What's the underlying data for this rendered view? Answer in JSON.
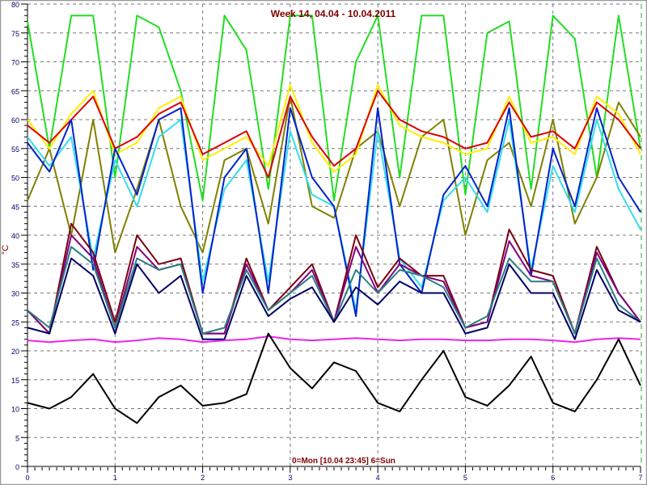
{
  "chart_data": {
    "type": "line",
    "title": "Week 14, 04.04 - 10.04.2011",
    "xlabel": "0=Mon [10.04 23:45] 6=Sun",
    "ylabel": "°C",
    "xlim": [
      0,
      7
    ],
    "ylim": [
      0,
      80
    ],
    "x_ticks": [
      "0",
      "1",
      "2",
      "3",
      "4",
      "5",
      "6",
      "7"
    ],
    "y_ticks": [
      "0",
      "5",
      "10",
      "15",
      "20",
      "25",
      "30",
      "35",
      "40",
      "45",
      "50",
      "55",
      "60",
      "65",
      "70",
      "75",
      "80"
    ],
    "grid": true,
    "x_step": 0.25,
    "series": [
      {
        "name": "green",
        "color": "#22dd22",
        "values": [
          77,
          55,
          78,
          78,
          50,
          78,
          76,
          65,
          46,
          78,
          72,
          48,
          78,
          78,
          46,
          70,
          78,
          50,
          78,
          78,
          47,
          75,
          77,
          48,
          78,
          74,
          50,
          78,
          55
        ]
      },
      {
        "name": "olive",
        "color": "#808000",
        "values": [
          46,
          55,
          40,
          60,
          37,
          48,
          60,
          45,
          37,
          53,
          55,
          42,
          64,
          45,
          43,
          55,
          58,
          45,
          57,
          60,
          40,
          53,
          56,
          45,
          60,
          42,
          50,
          63,
          57
        ]
      },
      {
        "name": "yellow",
        "color": "#ffee00",
        "values": [
          60,
          55,
          61,
          65,
          54,
          56,
          62,
          64,
          53,
          55,
          57,
          52,
          66,
          56,
          51,
          54,
          66,
          59,
          57,
          56,
          54,
          55,
          64,
          56,
          57,
          54,
          64,
          61,
          54
        ]
      },
      {
        "name": "red",
        "color": "#dd0000",
        "values": [
          59,
          56,
          60,
          64,
          55,
          57,
          61,
          63,
          54,
          56,
          58,
          50,
          64,
          57,
          52,
          55,
          65,
          60,
          58,
          57,
          55,
          56,
          63,
          57,
          58,
          55,
          63,
          60,
          55
        ]
      },
      {
        "name": "cyan",
        "color": "#33ddee",
        "values": [
          57,
          52,
          57,
          36,
          53,
          45,
          57,
          60,
          32,
          48,
          53,
          32,
          58,
          47,
          45,
          27,
          58,
          36,
          31,
          46,
          50,
          44,
          60,
          34,
          52,
          44,
          60,
          48,
          41
        ]
      },
      {
        "name": "blue",
        "color": "#0022cc",
        "values": [
          56,
          51,
          60,
          34,
          55,
          47,
          60,
          62,
          30,
          50,
          55,
          30,
          62,
          50,
          45,
          26,
          62,
          35,
          30,
          47,
          52,
          45,
          62,
          33,
          55,
          45,
          62,
          50,
          44
        ]
      },
      {
        "name": "maroon",
        "color": "#7a0010",
        "values": [
          27,
          23,
          42,
          37,
          25,
          40,
          35,
          36,
          23,
          23,
          36,
          27,
          31,
          35,
          25,
          40,
          31,
          36,
          33,
          33,
          24,
          25,
          41,
          34,
          33,
          23,
          38,
          30,
          25
        ]
      },
      {
        "name": "purple",
        "color": "#800080",
        "values": [
          27,
          23,
          40,
          36,
          24,
          38,
          34,
          35,
          23,
          23,
          35,
          27,
          30,
          34,
          25,
          38,
          30,
          35,
          33,
          32,
          24,
          25,
          39,
          33,
          32,
          23,
          37,
          30,
          25
        ]
      },
      {
        "name": "teal",
        "color": "#2a8080",
        "values": [
          27,
          24,
          38,
          35,
          24,
          36,
          34,
          35,
          23,
          24,
          34,
          27,
          30,
          33,
          25,
          34,
          30,
          34,
          33,
          31,
          24,
          26,
          36,
          32,
          32,
          23,
          36,
          28,
          25
        ]
      },
      {
        "name": "navy",
        "color": "#000066",
        "values": [
          24,
          23,
          36,
          33,
          23,
          35,
          30,
          33,
          22,
          22,
          33,
          26,
          29,
          31,
          25,
          31,
          28,
          32,
          30,
          30,
          23,
          24,
          35,
          30,
          30,
          22,
          34,
          27,
          25
        ]
      },
      {
        "name": "magenta",
        "color": "#ee22ee",
        "values": [
          21.8,
          21.5,
          21.8,
          22.0,
          21.5,
          21.8,
          22.2,
          22.0,
          21.5,
          21.8,
          22.0,
          22.5,
          22.0,
          21.8,
          22.0,
          22.2,
          22.0,
          21.8,
          22.0,
          22.0,
          21.8,
          21.8,
          22.0,
          22.0,
          21.8,
          21.5,
          22.0,
          22.2,
          22.0
        ]
      },
      {
        "name": "black",
        "color": "#000000",
        "values": [
          11,
          10,
          12,
          16,
          10,
          7.5,
          12,
          14,
          10.5,
          11,
          12.5,
          23,
          17,
          13.5,
          18,
          16.5,
          11,
          9.5,
          15,
          20,
          12,
          10.5,
          14,
          19,
          11,
          9.5,
          15,
          22,
          14
        ]
      }
    ]
  }
}
